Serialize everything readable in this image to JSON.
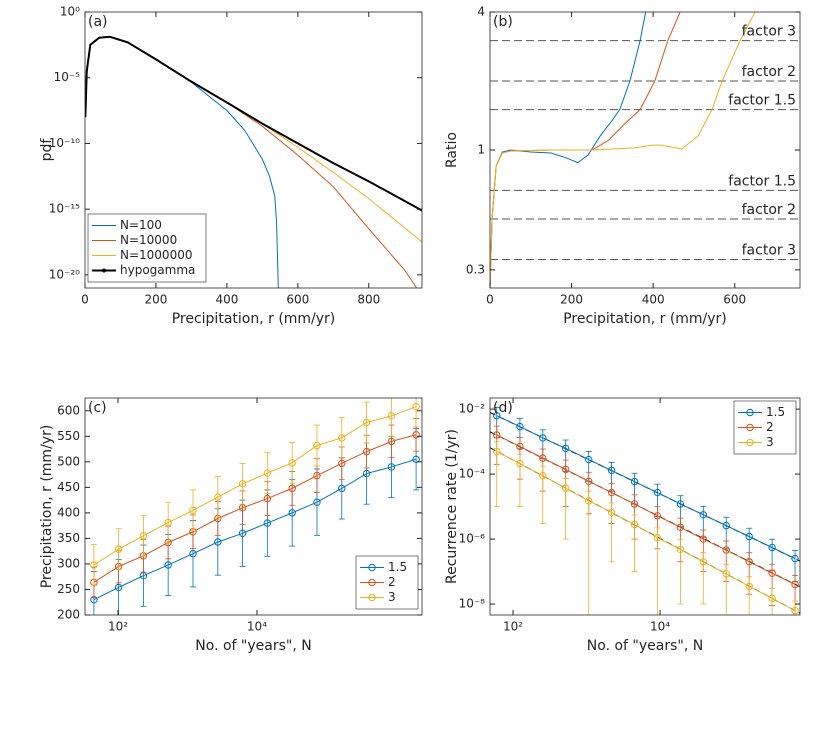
{
  "chart_data": [
    {
      "type": "line",
      "annotation": "(a)",
      "xlabel": "Precipitation,  r (mm/yr)",
      "ylabel": "pdf",
      "xlim": [
        0,
        950
      ],
      "xticks": [
        0,
        200,
        400,
        600,
        800
      ],
      "ylog": true,
      "ylim": [
        1e-21,
        1
      ],
      "yticks": [
        {
          "value": 1,
          "label": "10⁰"
        },
        {
          "value": 1e-05,
          "label": "10⁻⁵"
        },
        {
          "value": 1e-10,
          "label": "10⁻¹⁰"
        },
        {
          "value": 1e-15,
          "label": "10⁻¹⁵"
        },
        {
          "value": 1e-20,
          "label": "10⁻²⁰"
        }
      ],
      "legend": "lower left",
      "series": [
        {
          "name": "N=100",
          "color": "#0072bd",
          "x": [
            1,
            5,
            15,
            40,
            70,
            120,
            200,
            300,
            400,
            450,
            500,
            520,
            535,
            540,
            545
          ],
          "values": [
            1e-08,
            3.2e-05,
            0.0032,
            0.011,
            0.013,
            0.005,
            0.00025,
            4.5e-06,
            3.2e-08,
            1e-09,
            6.3e-12,
            3.2e-13,
            1e-14,
            1e-16,
            1e-21
          ]
        },
        {
          "name": "N=10000",
          "color": "#d95319",
          "x": [
            1,
            5,
            15,
            40,
            70,
            120,
            200,
            300,
            400,
            500,
            600,
            700,
            800,
            900,
            935
          ],
          "values": [
            1e-08,
            3.2e-05,
            0.0032,
            0.011,
            0.013,
            0.005,
            0.00025,
            5e-06,
            1.3e-07,
            2e-09,
            1.3e-11,
            5e-14,
            3.2e-17,
            2.5e-20,
            1e-21
          ]
        },
        {
          "name": "N=1000000",
          "color": "#edb120",
          "x": [
            1,
            5,
            15,
            40,
            70,
            120,
            200,
            300,
            400,
            500,
            600,
            700,
            800,
            900,
            950
          ],
          "values": [
            1e-08,
            3.2e-05,
            0.0032,
            0.011,
            0.013,
            0.005,
            0.00025,
            5e-06,
            1.3e-07,
            3.2e-09,
            5e-11,
            6.3e-13,
            6.3e-15,
            4e-17,
            3.2e-18
          ]
        },
        {
          "name": "hypogamma",
          "color": "#000000",
          "x": [
            1,
            5,
            15,
            40,
            70,
            120,
            200,
            300,
            400,
            500,
            600,
            700,
            800,
            950
          ],
          "values": [
            1e-08,
            3.2e-05,
            0.0032,
            0.011,
            0.013,
            0.005,
            0.00025,
            5e-06,
            1.3e-07,
            3.2e-09,
            1e-10,
            3.2e-12,
            1.3e-13,
            7.9e-16
          ]
        }
      ]
    },
    {
      "type": "line",
      "annotation": "(b)",
      "xlabel": "Precipitation,  r (mm/yr)",
      "ylabel": "Ratio",
      "xlim": [
        0,
        760
      ],
      "xticks": [
        0,
        200,
        400,
        600
      ],
      "ylog": true,
      "ylim": [
        0.25,
        4
      ],
      "yticks": [
        0.3,
        1,
        4
      ],
      "reference_lines": [
        {
          "value": 3,
          "label": "factor 3"
        },
        {
          "value": 2,
          "label": "factor 2"
        },
        {
          "value": 1.5,
          "label": "factor 1.5"
        },
        {
          "value": 0.667,
          "label": "factor 1.5"
        },
        {
          "value": 0.5,
          "label": "factor 2"
        },
        {
          "value": 0.333,
          "label": "factor 3"
        }
      ],
      "series": [
        {
          "color": "#0072bd",
          "x": [
            0,
            5,
            15,
            30,
            50,
            100,
            150,
            190,
            215,
            240,
            270,
            300,
            318,
            343,
            368,
            385
          ],
          "values": [
            0.25,
            0.5,
            0.85,
            0.98,
            1.0,
            0.98,
            0.97,
            0.92,
            0.88,
            0.95,
            1.15,
            1.35,
            1.5,
            2,
            3,
            4.3
          ]
        },
        {
          "color": "#d95319",
          "x": [
            0,
            5,
            15,
            30,
            50,
            150,
            250,
            290,
            330,
            368,
            404,
            436,
            466,
            480
          ],
          "values": [
            0.25,
            0.5,
            0.85,
            0.97,
            0.99,
            1.0,
            1.0,
            1.1,
            1.3,
            1.5,
            2,
            3,
            4,
            4.5
          ]
        },
        {
          "color": "#edb120",
          "x": [
            0,
            5,
            15,
            30,
            50,
            150,
            250,
            350,
            400,
            420,
            470,
            510,
            544,
            569,
            613,
            650,
            670
          ],
          "values": [
            0.25,
            0.5,
            0.85,
            0.97,
            0.99,
            1.0,
            1.0,
            1.02,
            1.05,
            1.05,
            1.01,
            1.15,
            1.5,
            2,
            3,
            4,
            4.6
          ]
        }
      ]
    },
    {
      "type": "errorbar",
      "annotation": "(c)",
      "xlabel": "No. of \"years\",  N",
      "ylabel": "Precipitation,  r (mm/yr)",
      "xlog": true,
      "xlim": [
        33.5,
        2370000
      ],
      "xticks": [
        {
          "value": 100,
          "label": "10²"
        },
        {
          "value": 10000,
          "label": "10⁴"
        }
      ],
      "ylim": [
        200,
        625
      ],
      "yticks": [
        200,
        250,
        300,
        350,
        400,
        450,
        500,
        550,
        600
      ],
      "legend": "lower right",
      "x": [
        45,
        102,
        232,
        527,
        1200,
        2730,
        6200,
        14100,
        32100,
        73000,
        166000,
        378000,
        860000,
        1950000
      ],
      "series": [
        {
          "name": "1.5",
          "color": "#0072bd",
          "values": [
            230,
            254,
            277,
            298,
            320,
            343,
            360,
            380,
            400,
            421,
            448,
            477,
            490,
            505
          ],
          "errors": [
            55,
            55,
            60,
            60,
            65,
            65,
            65,
            65,
            65,
            65,
            60,
            60,
            60,
            60
          ]
        },
        {
          "name": "2",
          "color": "#d95319",
          "values": [
            264,
            295,
            316,
            342,
            363,
            389,
            410,
            428,
            448,
            473,
            497,
            520,
            540,
            553
          ],
          "errors": [
            30,
            32,
            32,
            32,
            33,
            33,
            33,
            33,
            33,
            33,
            32,
            32,
            32,
            32
          ]
        },
        {
          "name": "3",
          "color": "#edb120",
          "values": [
            298,
            329,
            355,
            381,
            405,
            431,
            457,
            478,
            498,
            532,
            547,
            577,
            590,
            608
          ],
          "errors": [
            40,
            40,
            40,
            40,
            40,
            40,
            40,
            40,
            40,
            40,
            40,
            40,
            40,
            40
          ]
        }
      ]
    },
    {
      "type": "errorbar",
      "annotation": "(d)",
      "xlabel": "No. of \"years\",  N",
      "ylabel": "Recurrence rate (1/yr)",
      "xlog": true,
      "xlim": [
        48.6,
        800000
      ],
      "xticks": [
        {
          "value": 100,
          "label": "10²"
        },
        {
          "value": 10000,
          "label": "10⁴"
        }
      ],
      "ylog": true,
      "ylim": [
        4.6e-09,
        0.022
      ],
      "yticks": [
        {
          "value": 0.01,
          "label": "10⁻²"
        },
        {
          "value": 0.0001,
          "label": "10⁻⁴"
        },
        {
          "value": 1e-06,
          "label": "10⁻⁶"
        },
        {
          "value": 1e-08,
          "label": "10⁻⁸"
        }
      ],
      "legend": "upper right",
      "x": [
        60,
        124,
        254,
        520,
        1070,
        2190,
        4490,
        9200,
        18900,
        38700,
        79400,
        163000,
        334000,
        685000
      ],
      "series": [
        {
          "name": "1.5",
          "color": "#0072bd",
          "values": [
            0.0063,
            0.0029,
            0.0013,
            0.00062,
            0.00028,
            0.00013,
            5.9e-05,
            2.7e-05,
            1.2e-05,
            5.6e-06,
            2.6e-06,
            1.2e-06,
            5.5e-07,
            2.5e-07
          ],
          "errors": [
            0.005,
            0.0023,
            0.001,
            0.0005,
            0.00022,
            0.0001,
            4.7e-05,
            2.2e-05,
            9.6e-06,
            4.5e-06,
            2.1e-06,
            9.6e-07,
            4.4e-07,
            2e-07
          ]
        },
        {
          "name": "2",
          "color": "#d95319",
          "values": [
            0.0016,
            0.00071,
            0.00031,
            0.00014,
            6e-05,
            2.7e-05,
            1.2e-05,
            5.2e-06,
            2.3e-06,
            1e-06,
            4.6e-07,
            2e-07,
            8.9e-08,
            4e-08
          ],
          "errors": [
            0.0014,
            0.00064,
            0.00028,
            0.00013,
            5.4e-05,
            2.4e-05,
            1.1e-05,
            4.7e-06,
            2.1e-06,
            9e-07,
            4.1e-07,
            1.8e-07,
            8e-08,
            3.6e-08
          ]
        },
        {
          "name": "3",
          "color": "#edb120",
          "values": [
            0.0005,
            0.00021,
            8.9e-05,
            3.7e-05,
            1.5e-05,
            6.6e-06,
            2.8e-06,
            1.1e-06,
            4.8e-07,
            2e-07,
            8.5e-08,
            3.5e-08,
            1.5e-08,
            6.3e-09
          ],
          "errors": [
            0.00049,
            0.0002,
            8.6e-05,
            3.6e-05,
            1.5e-05,
            6.4e-06,
            2.7e-06,
            1.1e-06,
            4.7e-07,
            1.9e-07,
            8.2e-08,
            3.4e-08,
            1.5e-08,
            6.1e-09
          ]
        }
      ],
      "fits": [
        {
          "color": "#000000",
          "x": [
            48.6,
            800000
          ],
          "values": [
            0.0079,
            2.1e-07
          ]
        },
        {
          "color": "#000000",
          "x": [
            48.6,
            800000
          ],
          "values": [
            0.002,
            3.4e-08
          ]
        },
        {
          "color": "#000000",
          "x": [
            48.6,
            800000
          ],
          "values": [
            0.00065,
            5.2e-09
          ]
        }
      ]
    }
  ]
}
